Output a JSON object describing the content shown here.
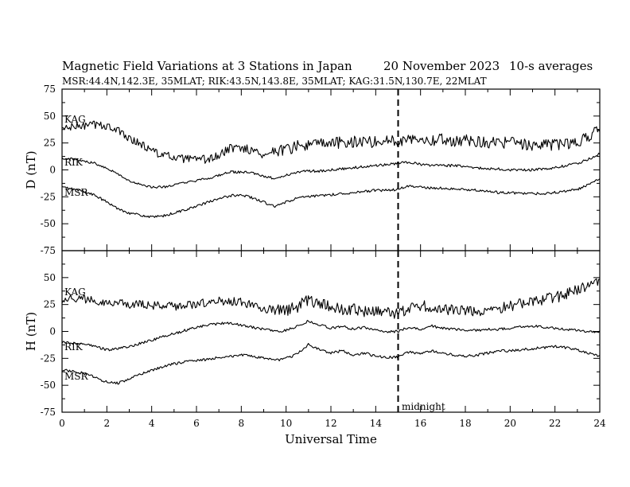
{
  "header": {
    "title": "Magnetic Field Variations at 3 Stations in Japan",
    "date": "20 November 2023",
    "averaging": "10-s averages",
    "stations_line": "MSR:44.4N,142.3E, 35MLAT;  RIK:43.5N,143.8E, 35MLAT;  KAG:31.5N,130.7E, 22MLAT"
  },
  "annotations": {
    "midnight": "midnight"
  },
  "chart_data": [
    {
      "type": "line",
      "panel": "D",
      "ylabel": "D (nT)",
      "xlabel": "Universal Time",
      "xlim": [
        0,
        24
      ],
      "ylim": [
        -75,
        75
      ],
      "xticks": [
        0,
        2,
        4,
        6,
        8,
        10,
        12,
        14,
        16,
        18,
        20,
        22,
        24
      ],
      "yticks": [
        75,
        50,
        25,
        0,
        -25,
        -50,
        -75
      ],
      "vline_x": 15,
      "series": [
        {
          "name": "KAG",
          "noise": 4,
          "x": [
            0,
            0.5,
            1,
            1.5,
            2,
            2.5,
            3,
            3.5,
            4,
            4.5,
            5,
            5.5,
            6,
            6.5,
            7,
            7.5,
            8,
            8.5,
            9,
            9.5,
            10,
            10.5,
            11,
            11.5,
            12,
            12.5,
            13,
            13.5,
            14,
            14.5,
            15,
            15.5,
            16,
            16.5,
            17,
            17.5,
            18,
            18.5,
            19,
            19.5,
            20,
            20.5,
            21,
            21.5,
            22,
            22.5,
            23,
            23.5,
            24
          ],
          "values": [
            38,
            40,
            41,
            42,
            41,
            36,
            30,
            24,
            18,
            14,
            11,
            10,
            9,
            10,
            13,
            20,
            21,
            18,
            14,
            18,
            19,
            22,
            23,
            24,
            25,
            25,
            26,
            27,
            26,
            27,
            27,
            30,
            29,
            28,
            28,
            27,
            28,
            27,
            26,
            25,
            25,
            24,
            23,
            23,
            24,
            24,
            26,
            31,
            38
          ]
        },
        {
          "name": "RIK",
          "noise": 1.2,
          "x": [
            0,
            0.5,
            1,
            1.5,
            2,
            2.5,
            3,
            3.5,
            4,
            4.5,
            5,
            5.5,
            6,
            6.5,
            7,
            7.5,
            8,
            8.5,
            9,
            9.5,
            10,
            10.5,
            11,
            11.5,
            12,
            12.5,
            13,
            13.5,
            14,
            14.5,
            15,
            15.5,
            16,
            16.5,
            17,
            17.5,
            18,
            18.5,
            19,
            19.5,
            20,
            20.5,
            21,
            21.5,
            22,
            22.5,
            23,
            23.5,
            24
          ],
          "values": [
            11,
            10,
            8,
            6,
            2,
            -4,
            -10,
            -14,
            -16,
            -16,
            -14,
            -12,
            -10,
            -8,
            -5,
            -2,
            -2,
            -3,
            -6,
            -8,
            -5,
            -2,
            -1,
            -1,
            0,
            1,
            2,
            3,
            4,
            5,
            6,
            7,
            5,
            4,
            4,
            4,
            3,
            2,
            1,
            1,
            0,
            0,
            0,
            1,
            2,
            4,
            6,
            10,
            15
          ]
        },
        {
          "name": "MSR",
          "noise": 1.2,
          "x": [
            0,
            0.5,
            1,
            1.5,
            2,
            2.5,
            3,
            3.5,
            4,
            4.5,
            5,
            5.5,
            6,
            6.5,
            7,
            7.5,
            8,
            8.5,
            9,
            9.5,
            10,
            10.5,
            11,
            11.5,
            12,
            12.5,
            13,
            13.5,
            14,
            14.5,
            15,
            15.5,
            16,
            16.5,
            17,
            17.5,
            18,
            18.5,
            19,
            19.5,
            20,
            20.5,
            21,
            21.5,
            22,
            22.5,
            23,
            23.5,
            24
          ],
          "values": [
            -16,
            -18,
            -20,
            -24,
            -30,
            -36,
            -40,
            -42,
            -44,
            -43,
            -40,
            -37,
            -34,
            -30,
            -27,
            -24,
            -23,
            -26,
            -30,
            -34,
            -30,
            -26,
            -25,
            -24,
            -23,
            -22,
            -21,
            -20,
            -19,
            -19,
            -18,
            -15,
            -16,
            -17,
            -17,
            -18,
            -18,
            -19,
            -20,
            -21,
            -21,
            -22,
            -22,
            -22,
            -21,
            -20,
            -18,
            -14,
            -8
          ]
        }
      ]
    },
    {
      "type": "line",
      "panel": "H",
      "ylabel": "H (nT)",
      "xlabel": "Universal Time",
      "xlim": [
        0,
        24
      ],
      "ylim": [
        -75,
        75
      ],
      "xticks": [
        0,
        2,
        4,
        6,
        8,
        10,
        12,
        14,
        16,
        18,
        20,
        22,
        24
      ],
      "yticks": [
        75,
        50,
        25,
        0,
        -25,
        -50,
        -75
      ],
      "vline_x": 15,
      "series": [
        {
          "name": "KAG",
          "noise": 4,
          "x": [
            0,
            0.5,
            1,
            1.5,
            2,
            2.5,
            3,
            3.5,
            4,
            4.5,
            5,
            5.5,
            6,
            6.5,
            7,
            7.5,
            8,
            8.5,
            9,
            9.5,
            10,
            10.5,
            11,
            11.5,
            12,
            12.5,
            13,
            13.5,
            14,
            14.5,
            15,
            15.5,
            16,
            16.5,
            17,
            17.5,
            18,
            18.5,
            19,
            19.5,
            20,
            20.5,
            21,
            21.5,
            22,
            22.5,
            23,
            23.5,
            24
          ],
          "values": [
            30,
            31,
            30,
            29,
            27,
            26,
            25,
            25,
            24,
            24,
            23,
            24,
            26,
            27,
            28,
            28,
            27,
            24,
            21,
            20,
            20,
            23,
            29,
            26,
            22,
            21,
            20,
            19,
            18,
            17,
            17,
            21,
            24,
            22,
            21,
            19,
            18,
            18,
            19,
            22,
            24,
            26,
            28,
            30,
            32,
            34,
            38,
            42,
            46
          ]
        },
        {
          "name": "RIK",
          "noise": 1.2,
          "x": [
            0,
            0.5,
            1,
            1.5,
            2,
            2.5,
            3,
            3.5,
            4,
            4.5,
            5,
            5.5,
            6,
            6.5,
            7,
            7.5,
            8,
            8.5,
            9,
            9.5,
            10,
            10.5,
            11,
            11.5,
            12,
            12.5,
            13,
            13.5,
            14,
            14.5,
            15,
            15.5,
            16,
            16.5,
            17,
            17.5,
            18,
            18.5,
            19,
            19.5,
            20,
            20.5,
            21,
            21.5,
            22,
            22.5,
            23,
            23.5,
            24
          ],
          "values": [
            -10,
            -11,
            -12,
            -14,
            -17,
            -16,
            -14,
            -11,
            -8,
            -5,
            -2,
            1,
            4,
            6,
            7,
            8,
            6,
            4,
            2,
            0,
            1,
            5,
            10,
            6,
            3,
            5,
            2,
            4,
            1,
            0,
            0,
            4,
            2,
            5,
            3,
            2,
            1,
            1,
            2,
            2,
            3,
            4,
            5,
            4,
            3,
            2,
            1,
            0,
            0
          ]
        },
        {
          "name": "MSR",
          "noise": 1.2,
          "x": [
            0,
            0.5,
            1,
            1.5,
            2,
            2.5,
            3,
            3.5,
            4,
            4.5,
            5,
            5.5,
            6,
            6.5,
            7,
            7.5,
            8,
            8.5,
            9,
            9.5,
            10,
            10.5,
            11,
            11.5,
            12,
            12.5,
            13,
            13.5,
            14,
            14.5,
            15,
            15.5,
            16,
            16.5,
            17,
            17.5,
            18,
            18.5,
            19,
            19.5,
            20,
            20.5,
            21,
            21.5,
            22,
            22.5,
            23,
            23.5,
            24
          ],
          "values": [
            -36,
            -37,
            -39,
            -43,
            -47,
            -48,
            -44,
            -40,
            -36,
            -33,
            -30,
            -28,
            -27,
            -26,
            -24,
            -23,
            -22,
            -23,
            -25,
            -27,
            -25,
            -21,
            -12,
            -17,
            -20,
            -18,
            -22,
            -20,
            -23,
            -24,
            -24,
            -19,
            -21,
            -18,
            -20,
            -22,
            -23,
            -22,
            -20,
            -18,
            -18,
            -17,
            -16,
            -15,
            -14,
            -15,
            -17,
            -20,
            -23
          ]
        }
      ]
    }
  ]
}
